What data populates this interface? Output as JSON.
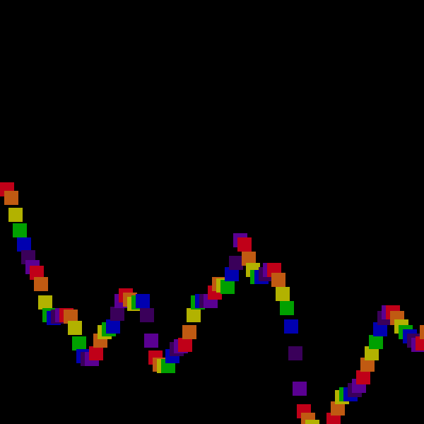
{
  "scene": {
    "background": "#000000",
    "description_kind": "animated-trail",
    "palette": [
      "#c00018",
      "#c05a12",
      "#b2b200",
      "#00a000",
      "#0000b0",
      "#3a005a",
      "#5a0092"
    ],
    "trail": {
      "count": 3,
      "length": 34
    }
  }
}
